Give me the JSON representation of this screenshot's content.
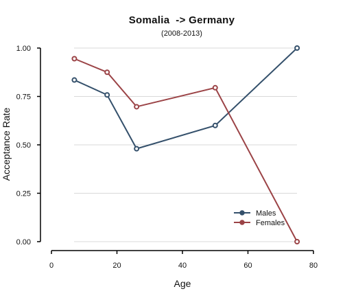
{
  "chart_data": {
    "type": "line",
    "title": "Somalia  -> Germany",
    "subtitle": "(2008-2013)",
    "xlabel": "Age",
    "ylabel": "Acceptance Rate",
    "xlim": [
      0,
      80
    ],
    "ylim": [
      0,
      1
    ],
    "xticks": [
      "0",
      "20",
      "40",
      "60",
      "80"
    ],
    "yticks": [
      "0.00",
      "0.25",
      "0.50",
      "0.75",
      "1.00"
    ],
    "grid": "horizontal",
    "legend_position": "bottom-right",
    "series": [
      {
        "name": "Males",
        "color": "#34506b",
        "x": [
          7,
          17,
          26,
          50,
          75
        ],
        "y": [
          0.835,
          0.758,
          0.48,
          0.6,
          1.0
        ]
      },
      {
        "name": "Females",
        "color": "#9b4346",
        "x": [
          7,
          17,
          26,
          50,
          75
        ],
        "y": [
          0.945,
          0.875,
          0.697,
          0.795,
          0.0
        ]
      }
    ]
  }
}
